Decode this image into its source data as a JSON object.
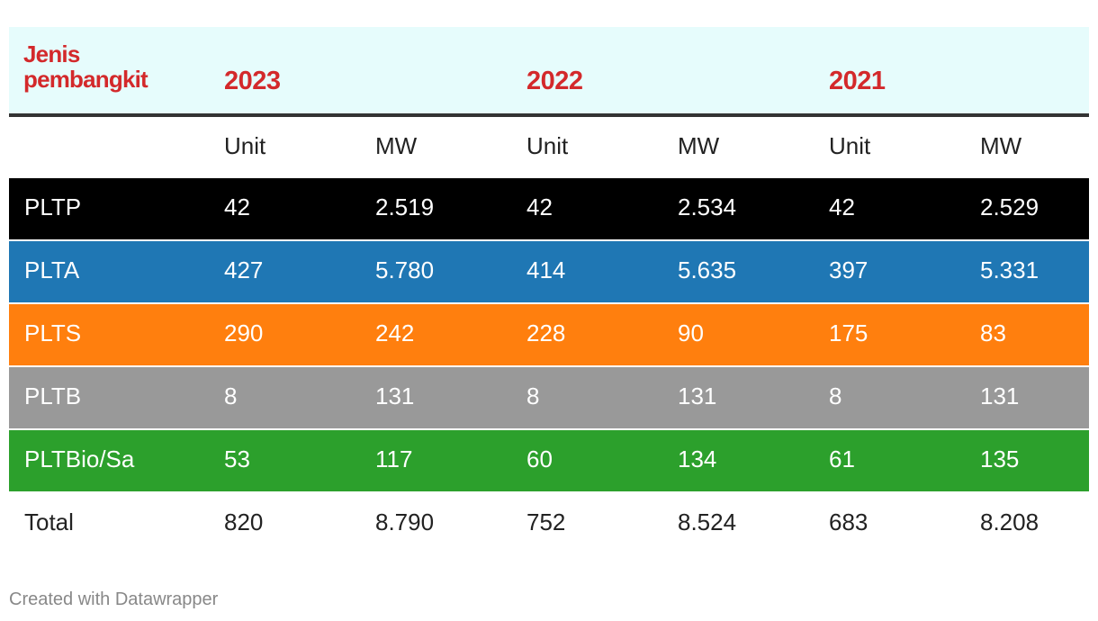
{
  "header": {
    "first_col_line1": "Jenis",
    "first_col_line2": "pembangkit",
    "years": [
      "2023",
      "2022",
      "2021"
    ],
    "subheaders": [
      "Unit",
      "MW",
      "Unit",
      "MW",
      "Unit",
      "MW"
    ]
  },
  "colors": {
    "header_bg": "#e6fcfc",
    "header_text": "#d3292b",
    "PLTP": "#000000",
    "PLTA": "#1f77b4",
    "PLTS": "#ff7f0e",
    "PLTB": "#999999",
    "PLTBio/Sa": "#2ca02c"
  },
  "chart_data": {
    "type": "table",
    "columns": [
      "Jenis pembangkit",
      "2023 Unit",
      "2023 MW",
      "2022 Unit",
      "2022 MW",
      "2021 Unit",
      "2021 MW"
    ],
    "rows": [
      {
        "label": "PLTP",
        "values": [
          "42",
          "2.519",
          "42",
          "2.534",
          "42",
          "2.529"
        ],
        "bg": "#000000",
        "fg": "#ffffff"
      },
      {
        "label": "PLTA",
        "values": [
          "427",
          "5.780",
          "414",
          "5.635",
          "397",
          "5.331"
        ],
        "bg": "#1f77b4",
        "fg": "#ffffff"
      },
      {
        "label": "PLTS",
        "values": [
          "290",
          "242",
          "228",
          "90",
          "175",
          "83"
        ],
        "bg": "#ff7f0e",
        "fg": "#ffffff"
      },
      {
        "label": "PLTB",
        "values": [
          "8",
          "131",
          "8",
          "131",
          "8",
          "131"
        ],
        "bg": "#999999",
        "fg": "#ffffff"
      },
      {
        "label": "PLTBio/Sa",
        "values": [
          "53",
          "117",
          "60",
          "134",
          "61",
          "135"
        ],
        "bg": "#2ca02c",
        "fg": "#ffffff"
      }
    ],
    "total": {
      "label": "Total",
      "values": [
        "820",
        "8.790",
        "752",
        "8.524",
        "683",
        "8.208"
      ]
    }
  },
  "footer": "Created with Datawrapper"
}
